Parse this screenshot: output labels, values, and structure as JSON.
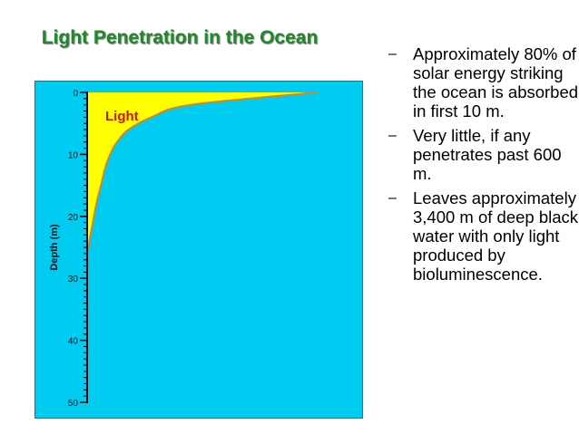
{
  "slide": {
    "title": "Light Penetration in the Ocean",
    "bullet_marker": "–",
    "bullets": [
      "Approximately 80% of solar energy striking the ocean is absorbed in first 10 m.",
      "Very little, if any penetrates past 600 m.",
      "Leaves approximately 3,400 m of deep black water with only light produced by bioluminescence."
    ]
  },
  "diagram": {
    "region_label": "Light",
    "ylabel": "Depth (m)",
    "yticks": [
      "0",
      "10",
      "20",
      "30",
      "40",
      "50"
    ],
    "colors": {
      "water": "#00ccf2",
      "light_fill": "#ffff00",
      "curve": "#c98b2a",
      "region_label": "#cc1111"
    }
  },
  "chart_data": {
    "type": "area",
    "title": "",
    "xlabel": "",
    "ylabel": "Depth (m)",
    "ylim": [
      0,
      50
    ],
    "y_inverted": true,
    "region_label": "Light",
    "series": [
      {
        "name": "Light",
        "points": [
          {
            "depth": 0,
            "intensity": 100
          },
          {
            "depth": 2,
            "intensity": 45
          },
          {
            "depth": 4,
            "intensity": 28
          },
          {
            "depth": 6,
            "intensity": 18
          },
          {
            "depth": 8,
            "intensity": 13
          },
          {
            "depth": 10,
            "intensity": 10
          },
          {
            "depth": 12,
            "intensity": 8
          },
          {
            "depth": 15,
            "intensity": 6
          },
          {
            "depth": 18,
            "intensity": 4
          },
          {
            "depth": 21,
            "intensity": 2.5
          },
          {
            "depth": 24,
            "intensity": 1
          },
          {
            "depth": 27,
            "intensity": 0
          }
        ]
      }
    ]
  }
}
